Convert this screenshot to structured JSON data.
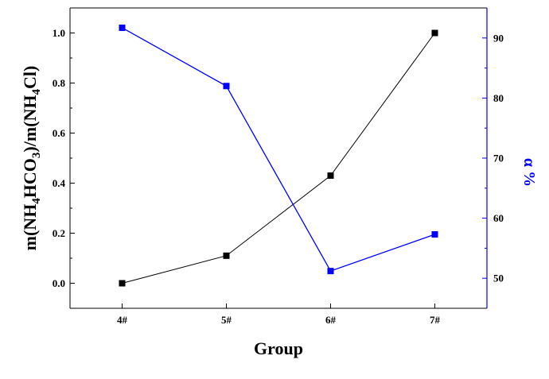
{
  "chart_data": {
    "type": "line",
    "xlabel": "Group",
    "categories": [
      "4#",
      "5#",
      "6#",
      "7#"
    ],
    "y_left": {
      "label_parts": [
        "m(NH",
        "4",
        "HCO",
        "3",
        ")/m(NH",
        "4",
        "Cl)"
      ],
      "ylim": [
        -0.1,
        1.1
      ],
      "ticks": [
        "0.0",
        "0.2",
        "0.4",
        "0.6",
        "0.8",
        "1.0"
      ],
      "color": "#000000"
    },
    "y_right": {
      "label": "α %",
      "ylim": [
        45,
        95
      ],
      "ticks": [
        "50",
        "60",
        "70",
        "80",
        "90"
      ],
      "color": "#0000ff"
    },
    "series": [
      {
        "axis": "left",
        "color": "#000000",
        "marker": "square",
        "values": [
          0.0,
          0.11,
          0.43,
          1.0
        ]
      },
      {
        "axis": "right",
        "color": "#0000ff",
        "marker": "square",
        "values": [
          91.7,
          82.0,
          51.2,
          57.3
        ]
      }
    ],
    "grid": false
  }
}
